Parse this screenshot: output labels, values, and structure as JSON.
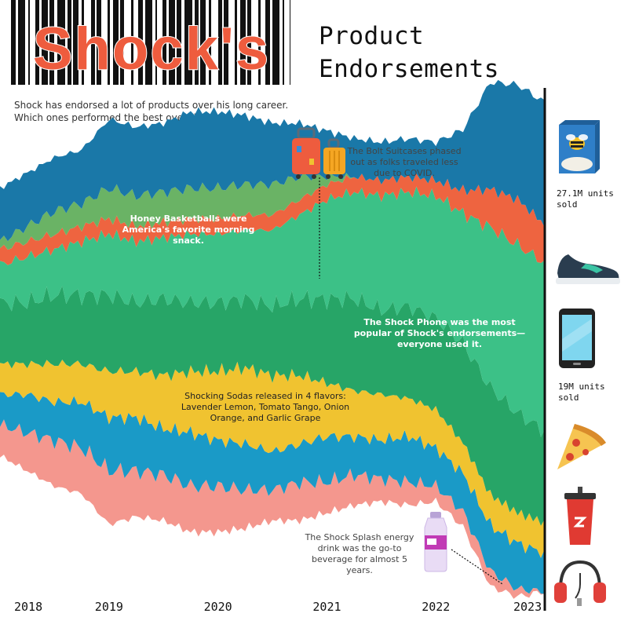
{
  "header": {
    "logo_text": "Shock's",
    "title_line1": "Product",
    "title_line2": "Endorsements",
    "intro": "Shock has endorsed a lot of products over his long career. Which ones performed the best over time?"
  },
  "annotations": {
    "honey": "Honey Basketballs were America's favorite morning snack.",
    "suitcase": "The Bolt Suitcases phased out as folks traveled less due to COVID.",
    "phone": "The Shock Phone was the most popular of Shock's endorsements—everyone used it.",
    "soda": "Shocking Sodas released in 4 flavors: Lavender Lemon, Tomato Tango, Onion Orange, and Garlic Grape",
    "splash": "The Shock Splash energy drink was the go-to beverage for almost 5 years."
  },
  "legend": [
    {
      "name": "cereal-icon"
    },
    {
      "name": "sneaker-icon",
      "stat": ""
    },
    {
      "name": "phone-icon",
      "stat": "19M units sold"
    },
    {
      "name": "pizza-icon"
    },
    {
      "name": "soda-cup-icon"
    },
    {
      "name": "headphones-icon"
    }
  ],
  "legend_stats": {
    "cereal": "27.1M units sold",
    "phone": "19M units sold"
  },
  "chart_data": {
    "type": "area",
    "subtype": "streamgraph",
    "x": [
      2018.0,
      2018.25,
      2018.5,
      2018.75,
      2019.0,
      2019.25,
      2019.5,
      2019.75,
      2020.0,
      2020.25,
      2020.5,
      2020.75,
      2021.0,
      2021.25,
      2021.5,
      2021.75,
      2022.0,
      2022.25,
      2022.5,
      2022.75,
      2023.0
    ],
    "x_tick_labels": [
      "2018",
      "2019",
      "2020",
      "2021",
      "2022",
      "2023"
    ],
    "series": [
      {
        "name": "Headphones",
        "color": "#f4978e",
        "values": [
          4,
          5,
          6,
          6,
          7,
          6,
          6,
          6,
          6,
          5,
          4,
          5,
          4,
          4,
          3,
          3,
          2,
          2,
          2,
          1,
          0
        ]
      },
      {
        "name": "Energy Drink (Shock Splash)",
        "color": "#1a9ac7",
        "values": [
          4,
          5,
          5,
          6,
          7,
          7,
          6,
          7,
          6,
          6,
          5,
          5,
          6,
          5,
          5,
          6,
          5,
          5,
          6,
          6,
          5
        ]
      },
      {
        "name": "Shocking Sodas",
        "color": "#f0c330",
        "values": [
          4,
          4,
          5,
          5,
          6,
          6,
          7,
          8,
          9,
          10,
          10,
          9,
          7,
          6,
          6,
          5,
          5,
          4,
          4,
          4,
          4
        ]
      },
      {
        "name": "Pizza",
        "color": "#27a567",
        "values": [
          8,
          8,
          9,
          9,
          10,
          9,
          10,
          9,
          9,
          9,
          9,
          10,
          11,
          12,
          11,
          12,
          12,
          13,
          14,
          13,
          12
        ]
      },
      {
        "name": "Shock Phone",
        "color": "#3cc187",
        "values": [
          5,
          6,
          6,
          7,
          8,
          8,
          8,
          9,
          9,
          9,
          10,
          11,
          13,
          14,
          15,
          15,
          16,
          17,
          21,
          22,
          22
        ]
      },
      {
        "name": "Sneakers",
        "color": "#ee6440",
        "values": [
          2,
          2,
          2,
          2,
          2,
          2,
          2,
          2,
          2,
          2,
          2,
          2,
          2,
          2,
          2,
          2,
          2,
          3,
          5,
          6,
          5
        ]
      },
      {
        "name": "Bolt Suitcases",
        "color": "#6ab365",
        "values": [
          1,
          2,
          3,
          3,
          4,
          4,
          4,
          4,
          4,
          4,
          4,
          3,
          1,
          0,
          0,
          0,
          0,
          0,
          0,
          0,
          0
        ]
      },
      {
        "name": "Honey Basketballs",
        "color": "#1a78a8",
        "values": [
          7,
          7,
          7,
          7,
          9,
          9,
          9,
          10,
          10,
          9,
          8,
          7,
          6,
          5,
          5,
          5,
          5,
          8,
          14,
          15,
          16
        ]
      }
    ]
  }
}
